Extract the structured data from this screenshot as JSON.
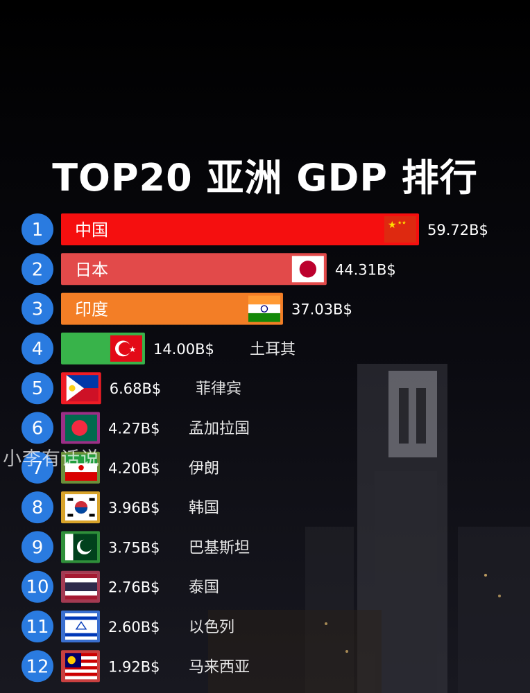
{
  "title": "TOP20 亚洲 GDP 排行",
  "watermark": "小李有话说",
  "chart_data": {
    "type": "bar",
    "orientation": "horizontal",
    "title": "TOP20 亚洲 GDP 排行",
    "unit": "B$",
    "items": [
      {
        "rank": "1",
        "name": "中国",
        "value": 59.72,
        "value_label": "59.72B$",
        "color": "#f50f0f",
        "flag": "china-flag"
      },
      {
        "rank": "2",
        "name": "日本",
        "value": 44.31,
        "value_label": "44.31B$",
        "color": "#e24a4a",
        "flag": "japan-flag"
      },
      {
        "rank": "3",
        "name": "印度",
        "value": 37.03,
        "value_label": "37.03B$",
        "color": "#f37e26",
        "flag": "india-flag"
      },
      {
        "rank": "4",
        "name": "土耳其",
        "value": 14.0,
        "value_label": "14.00B$",
        "color": "#38b34a",
        "flag": "turkey-flag"
      },
      {
        "rank": "5",
        "name": "菲律宾",
        "value": 6.68,
        "value_label": "6.68B$",
        "color": "#ee1c25",
        "flag": "philippines-flag"
      },
      {
        "rank": "6",
        "name": "孟加拉国",
        "value": 4.27,
        "value_label": "4.27B$",
        "color": "#9c2f86",
        "flag": "bangladesh-flag"
      },
      {
        "rank": "7",
        "name": "伊朗",
        "value": 4.2,
        "value_label": "4.20B$",
        "color": "#6b8f3a",
        "flag": "iran-flag"
      },
      {
        "rank": "8",
        "name": "韩国",
        "value": 3.96,
        "value_label": "3.96B$",
        "color": "#d8a32a",
        "flag": "korea-flag"
      },
      {
        "rank": "9",
        "name": "巴基斯坦",
        "value": 3.75,
        "value_label": "3.75B$",
        "color": "#2f8f3a",
        "flag": "pakistan-flag"
      },
      {
        "rank": "10",
        "name": "泰国",
        "value": 2.76,
        "value_label": "2.76B$",
        "color": "#a33a52",
        "flag": "thailand-flag"
      },
      {
        "rank": "11",
        "name": "以色列",
        "value": 2.6,
        "value_label": "2.60B$",
        "color": "#3a6fcf",
        "flag": "israel-flag"
      },
      {
        "rank": "12",
        "name": "马来西亚",
        "value": 1.92,
        "value_label": "1.92B$",
        "color": "#c94040",
        "flag": "malaysia-flag"
      }
    ]
  },
  "colors": {
    "rank_circle": "#2a7be0",
    "background": "#000000"
  }
}
